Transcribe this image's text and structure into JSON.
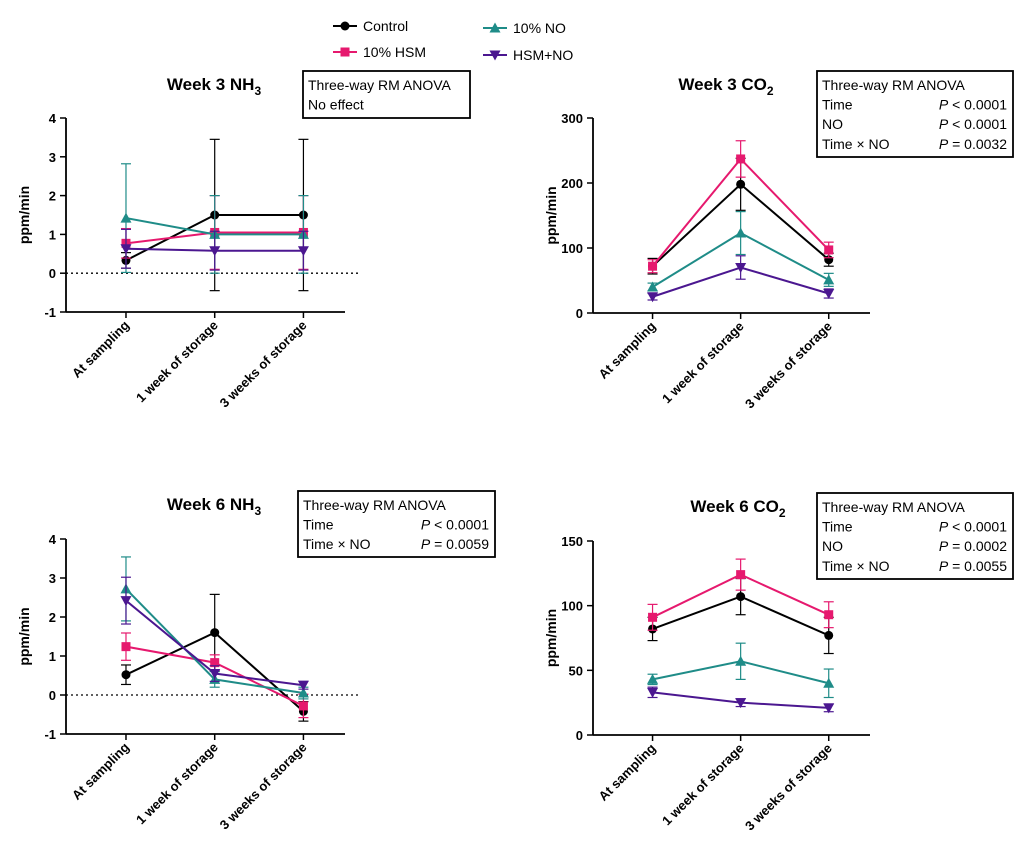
{
  "legend": {
    "items": [
      {
        "name": "Control",
        "color": "#000000",
        "marker": "circle"
      },
      {
        "name": "10% HSM",
        "color": "#e6196e",
        "marker": "square"
      },
      {
        "name": "10% NO",
        "color": "#1f8c88",
        "marker": "triangle-up"
      },
      {
        "name": "HSM+NO",
        "color": "#4b1790",
        "marker": "triangle-down"
      }
    ]
  },
  "chart_data": [
    {
      "type": "line",
      "title": "Week 3 NH",
      "title_sub": "3",
      "ylabel": "ppm/min",
      "categories": [
        "At sampling",
        "1 week of storage",
        "3 weeks of storage"
      ],
      "ylim": [
        -1,
        4
      ],
      "yticks": [
        "-1",
        "0",
        "1",
        "2",
        "3",
        "4"
      ],
      "zero_line": true,
      "stats": {
        "lines": [
          {
            "label": "Three-way RM ANOVA",
            "value": ""
          },
          {
            "label": "No effect",
            "value": ""
          }
        ]
      },
      "series": [
        {
          "name": "Control",
          "values": [
            0.33,
            1.5,
            1.5
          ],
          "err": [
            0.2,
            1.95,
            1.95
          ]
        },
        {
          "name": "10% HSM",
          "values": [
            0.77,
            1.05,
            1.05
          ],
          "err": [
            0.38,
            0.95,
            0.95
          ]
        },
        {
          "name": "10% NO",
          "values": [
            1.42,
            1.0,
            1.0
          ],
          "err": [
            1.4,
            1.0,
            1.0
          ]
        },
        {
          "name": "HSM+NO",
          "values": [
            0.63,
            0.58,
            0.58
          ],
          "err": [
            0.5,
            0.5,
            0.5
          ]
        }
      ]
    },
    {
      "type": "line",
      "title": "Week 3 CO",
      "title_sub": "2",
      "ylabel": "ppm/min",
      "categories": [
        "At sampling",
        "1 week of storage",
        "3 weeks of storage"
      ],
      "ylim": [
        0,
        300
      ],
      "yticks": [
        "0",
        "100",
        "200",
        "300"
      ],
      "zero_line": false,
      "stats": {
        "lines": [
          {
            "label": "Three-way RM ANOVA",
            "value": ""
          },
          {
            "label": "Time",
            "value": "P < 0.0001"
          },
          {
            "label": "NO",
            "value": "P < 0.0001"
          },
          {
            "label": "Time × NO",
            "value": "P = 0.0032"
          }
        ]
      },
      "series": [
        {
          "name": "Control",
          "values": [
            72,
            198,
            82
          ],
          "err": [
            12,
            40,
            10
          ]
        },
        {
          "name": "10% HSM",
          "values": [
            72,
            237,
            97
          ],
          "err": [
            10,
            28,
            12
          ]
        },
        {
          "name": "10% NO",
          "values": [
            40,
            123,
            51
          ],
          "err": [
            6,
            33,
            10
          ]
        },
        {
          "name": "HSM+NO",
          "values": [
            25,
            70,
            30
          ],
          "err": [
            5,
            18,
            7
          ]
        }
      ]
    },
    {
      "type": "line",
      "title": "Week 6 NH",
      "title_sub": "3",
      "ylabel": "ppm/min",
      "categories": [
        "At sampling",
        "1 week of storage",
        "3 weeks of storage"
      ],
      "ylim": [
        -1,
        4
      ],
      "yticks": [
        "-1",
        "0",
        "1",
        "2",
        "3",
        "4"
      ],
      "zero_line": true,
      "stats": {
        "lines": [
          {
            "label": "Three-way RM ANOVA",
            "value": ""
          },
          {
            "label": "Time",
            "value": "P < 0.0001"
          },
          {
            "label": "Time × NO",
            "value": "P = 0.0059"
          }
        ]
      },
      "series": [
        {
          "name": "Control",
          "values": [
            0.52,
            1.6,
            -0.42
          ],
          "err": [
            0.25,
            0.98,
            0.25
          ]
        },
        {
          "name": "10% HSM",
          "values": [
            1.24,
            0.83,
            -0.28
          ],
          "err": [
            0.35,
            0.2,
            0.3
          ]
        },
        {
          "name": "10% NO",
          "values": [
            2.72,
            0.4,
            0.05
          ],
          "err": [
            0.82,
            0.2,
            0.15
          ]
        },
        {
          "name": "HSM+NO",
          "values": [
            2.42,
            0.55,
            0.25
          ],
          "err": [
            0.6,
            0.2,
            0.1
          ]
        }
      ]
    },
    {
      "type": "line",
      "title": "Week 6 CO",
      "title_sub": "2",
      "ylabel": "ppm/min",
      "categories": [
        "At sampling",
        "1 week of storage",
        "3 weeks of storage"
      ],
      "ylim": [
        0,
        150
      ],
      "yticks": [
        "0",
        "50",
        "100",
        "150"
      ],
      "zero_line": false,
      "stats": {
        "lines": [
          {
            "label": "Three-way RM ANOVA",
            "value": ""
          },
          {
            "label": "Time",
            "value": "P < 0.0001"
          },
          {
            "label": "NO",
            "value": "P = 0.0002"
          },
          {
            "label": "Time × NO",
            "value": "P = 0.0055"
          }
        ]
      },
      "series": [
        {
          "name": "Control",
          "values": [
            82,
            107,
            77
          ],
          "err": [
            9,
            14,
            14
          ]
        },
        {
          "name": "10% HSM",
          "values": [
            91,
            124,
            93
          ],
          "err": [
            10,
            12,
            10
          ]
        },
        {
          "name": "10% NO",
          "values": [
            43,
            57,
            40
          ],
          "err": [
            4,
            14,
            11
          ]
        },
        {
          "name": "HSM+NO",
          "values": [
            33,
            25,
            21
          ],
          "err": [
            4,
            3,
            3
          ]
        }
      ]
    }
  ]
}
